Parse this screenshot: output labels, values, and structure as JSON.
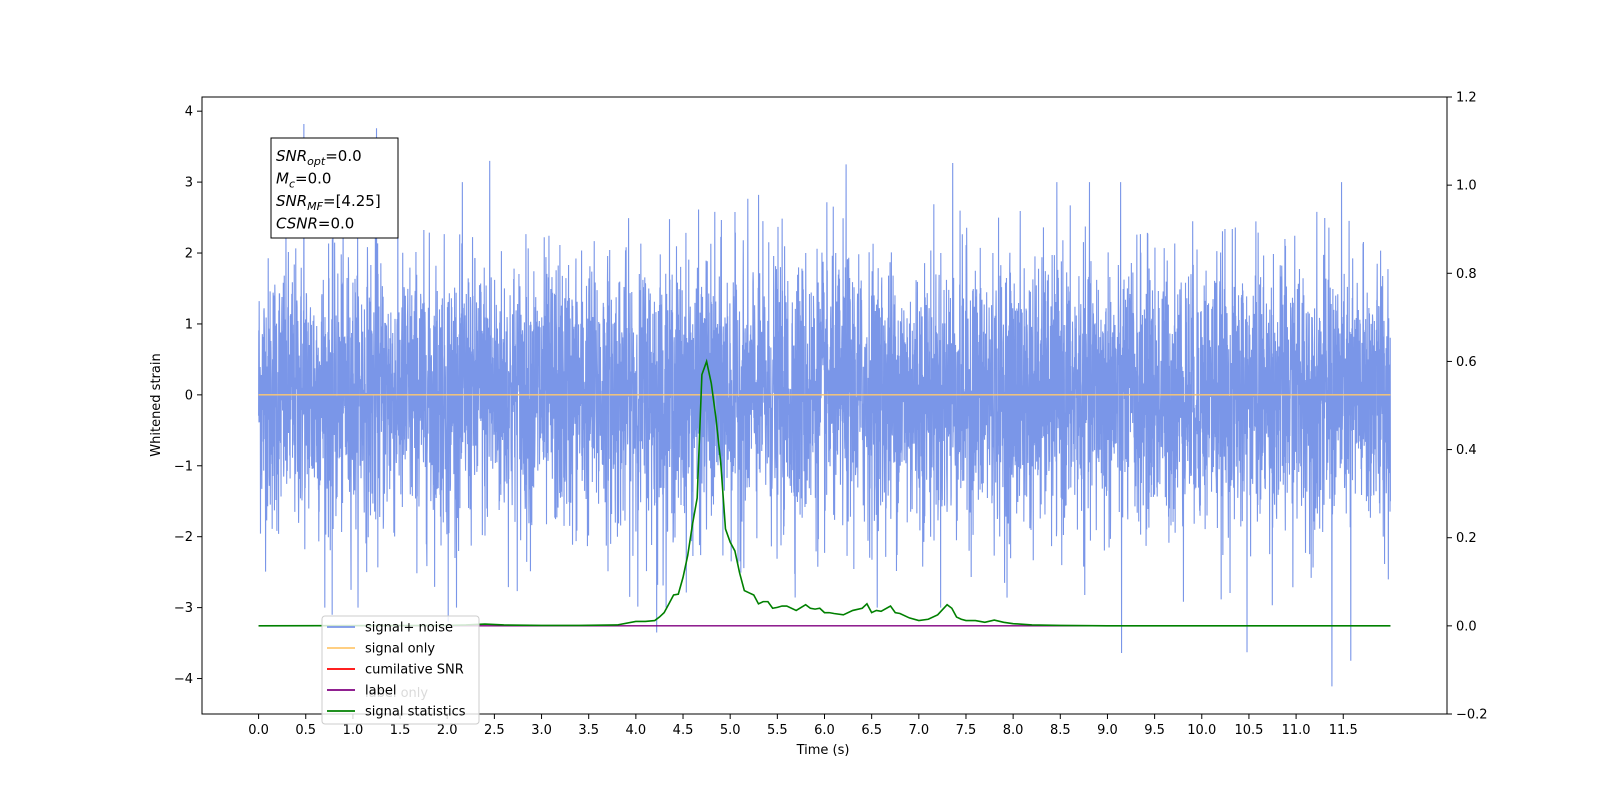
{
  "chart_data": {
    "type": "line",
    "xlabel": "Time (s)",
    "ylabel": "Whitened strain",
    "ylabel_right": "",
    "xlim": [
      -0.6,
      12.6
    ],
    "ylim": [
      -4.5,
      4.2
    ],
    "ylim_right": [
      -0.2,
      1.2
    ],
    "x_ticks": [
      "0.0",
      "0.5",
      "1.0",
      "1.5",
      "2.0",
      "2.5",
      "3.0",
      "3.5",
      "4.0",
      "4.5",
      "5.0",
      "5.5",
      "6.0",
      "6.5",
      "7.0",
      "7.5",
      "8.0",
      "8.5",
      "9.0",
      "9.5",
      "10.0",
      "10.5",
      "11.0",
      "11.5"
    ],
    "y_ticks": [
      "4",
      "3",
      "2",
      "1",
      "0",
      "−1",
      "−2",
      "−3",
      "−4"
    ],
    "y_ticks_right": [
      "1.2",
      "1.0",
      "0.8",
      "0.6",
      "0.4",
      "0.2",
      "0.0",
      "−0.2"
    ],
    "grid": false,
    "legend_position": "lower-left",
    "annotation_lines": [
      {
        "base": "SNR",
        "sub": "opt",
        "rest": "=0.0"
      },
      {
        "base": "M",
        "sub": "c",
        "rest": "=0.0"
      },
      {
        "base": "SNR",
        "sub": "MF",
        "rest": "=[4.25]"
      },
      {
        "base": "CSNR",
        "sub": "",
        "rest": "=0.0"
      }
    ],
    "series": [
      {
        "name": "signal+ noise",
        "color": "#7a96e8",
        "axis": "left",
        "style": "dense noise, mean 0, std ~1, t from 0 to 12 s, extremes approx 3.8 / -4.1",
        "x_range": [
          0.0,
          12.0
        ],
        "peaks": [
          {
            "x": 0.48,
            "y": 3.82
          },
          {
            "x": 1.25,
            "y": 3.76
          },
          {
            "x": 2.45,
            "y": 3.3
          },
          {
            "x": 7.36,
            "y": 3.27
          },
          {
            "x": 6.23,
            "y": 3.25
          },
          {
            "x": 9.15,
            "y": -3.64
          },
          {
            "x": 11.38,
            "y": -4.11
          },
          {
            "x": 11.58,
            "y": -3.75
          },
          {
            "x": 10.48,
            "y": -3.63
          },
          {
            "x": 4.22,
            "y": -3.35
          },
          {
            "x": 0.78,
            "y": -3.1
          },
          {
            "x": 2.01,
            "y": -3.2
          }
        ]
      },
      {
        "name": "signal only",
        "color": "#ffc870",
        "axis": "left",
        "x": [
          0.0,
          12.0
        ],
        "y": [
          0.0,
          0.0
        ]
      },
      {
        "name": "cumilative SNR",
        "color": "#ff0000",
        "axis": "right",
        "x": [],
        "y": []
      },
      {
        "name": "label",
        "color": "#800080",
        "axis": "right",
        "x": [
          0.0,
          12.0
        ],
        "y": [
          0.0,
          0.0
        ]
      },
      {
        "name": "label only",
        "color": "#ffc870",
        "axis": "right",
        "x": [],
        "y": []
      },
      {
        "name": "signal statistics",
        "color": "#008000",
        "axis": "right",
        "x": [
          0.0,
          2.0,
          2.2,
          2.4,
          2.6,
          3.0,
          3.4,
          3.8,
          4.0,
          4.1,
          4.2,
          4.25,
          4.3,
          4.35,
          4.4,
          4.45,
          4.5,
          4.55,
          4.6,
          4.65,
          4.7,
          4.75,
          4.8,
          4.85,
          4.9,
          4.95,
          5.0,
          5.05,
          5.1,
          5.15,
          5.2,
          5.25,
          5.3,
          5.35,
          5.4,
          5.45,
          5.5,
          5.55,
          5.6,
          5.7,
          5.8,
          5.85,
          5.9,
          5.95,
          6.0,
          6.05,
          6.1,
          6.2,
          6.3,
          6.4,
          6.45,
          6.5,
          6.55,
          6.6,
          6.7,
          6.75,
          6.8,
          6.9,
          7.0,
          7.1,
          7.2,
          7.3,
          7.35,
          7.4,
          7.45,
          7.5,
          7.6,
          7.7,
          7.8,
          7.9,
          8.0,
          8.2,
          8.5,
          9.0,
          10.0,
          11.0,
          12.0
        ],
        "y": [
          0.0,
          0.001,
          0.002,
          0.004,
          0.002,
          0.001,
          0.001,
          0.002,
          0.01,
          0.01,
          0.012,
          0.02,
          0.03,
          0.05,
          0.07,
          0.072,
          0.11,
          0.16,
          0.23,
          0.29,
          0.57,
          0.6,
          0.55,
          0.47,
          0.37,
          0.22,
          0.19,
          0.17,
          0.12,
          0.08,
          0.075,
          0.07,
          0.05,
          0.055,
          0.055,
          0.04,
          0.042,
          0.045,
          0.045,
          0.035,
          0.048,
          0.04,
          0.038,
          0.04,
          0.03,
          0.03,
          0.028,
          0.025,
          0.035,
          0.04,
          0.05,
          0.03,
          0.035,
          0.033,
          0.045,
          0.03,
          0.028,
          0.018,
          0.012,
          0.015,
          0.025,
          0.048,
          0.04,
          0.02,
          0.015,
          0.012,
          0.012,
          0.008,
          0.013,
          0.008,
          0.005,
          0.002,
          0.001,
          0.0,
          0.0,
          0.0,
          0.0
        ]
      }
    ]
  }
}
